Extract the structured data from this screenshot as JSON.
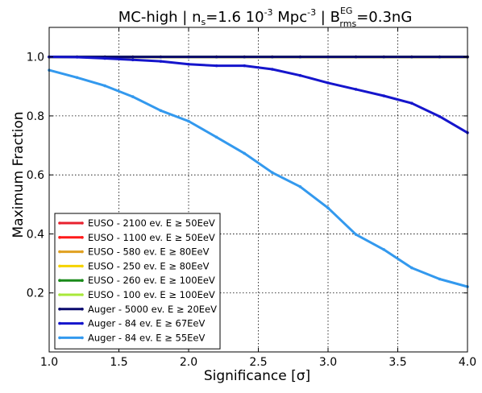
{
  "chart_data": {
    "type": "line",
    "title": {
      "prefix": "MC-high | n",
      "n_sub": "s",
      "mid": "=1.6 10",
      "exp": "-3",
      "unit": " Mpc",
      "unit_exp": "-3",
      "sep": "  | B",
      "b_sup": "EG",
      "b_sub": "rms",
      "suffix": "=0.3nG"
    },
    "xlabel": "Significance [σ]",
    "ylabel": "Maximum Fraction",
    "xlim": [
      1.0,
      4.0
    ],
    "ylim": [
      0.0,
      1.1
    ],
    "xticks": [
      "1.0",
      "1.5",
      "2.0",
      "2.5",
      "3.0",
      "3.5",
      "4.0"
    ],
    "yticks": [
      "0.2",
      "0.4",
      "0.6",
      "0.8",
      "1.0"
    ],
    "grid": true,
    "legend_position": "lower-left",
    "x": [
      1.0,
      1.2,
      1.4,
      1.6,
      1.8,
      2.0,
      2.2,
      2.4,
      2.6,
      2.8,
      3.0,
      3.2,
      3.4,
      3.6,
      3.8,
      4.0
    ],
    "series": [
      {
        "name": "EUSO - 2100 ev. E  ≥ 50EeV",
        "color": "#e8212e",
        "values": [
          1.0,
          1.0,
          1.0,
          1.0,
          1.0,
          1.0,
          1.0,
          1.0,
          1.0,
          1.0,
          1.0,
          1.0,
          1.0,
          1.0,
          1.0,
          1.0
        ]
      },
      {
        "name": "EUSO - 1100 ev. E  ≥ 50EeV",
        "color": "#ff1a1a",
        "values": [
          1.0,
          1.0,
          1.0,
          1.0,
          1.0,
          1.0,
          1.0,
          1.0,
          1.0,
          1.0,
          1.0,
          1.0,
          1.0,
          1.0,
          1.0,
          1.0
        ]
      },
      {
        "name": "EUSO - 580 ev. E  ≥ 80EeV",
        "color": "#e0a020",
        "values": [
          1.0,
          1.0,
          1.0,
          1.0,
          1.0,
          1.0,
          1.0,
          1.0,
          1.0,
          1.0,
          1.0,
          1.0,
          1.0,
          1.0,
          1.0,
          1.0
        ]
      },
      {
        "name": "EUSO - 250 ev. E  ≥ 80EeV",
        "color": "#f5d300",
        "values": [
          1.0,
          1.0,
          1.0,
          1.0,
          1.0,
          1.0,
          1.0,
          1.0,
          1.0,
          1.0,
          1.0,
          1.0,
          1.0,
          1.0,
          1.0,
          1.0
        ]
      },
      {
        "name": "EUSO - 260 ev. E  ≥ 100EeV",
        "color": "#1a8a1a",
        "values": [
          1.0,
          1.0,
          1.0,
          1.0,
          1.0,
          1.0,
          1.0,
          1.0,
          1.0,
          1.0,
          1.0,
          1.0,
          1.0,
          1.0,
          1.0,
          1.0
        ]
      },
      {
        "name": "EUSO - 100 ev. E  ≥ 100EeV",
        "color": "#a8e83a",
        "values": [
          1.0,
          1.0,
          1.0,
          1.0,
          1.0,
          1.0,
          1.0,
          1.0,
          1.0,
          1.0,
          1.0,
          1.0,
          1.0,
          1.0,
          1.0,
          1.0
        ]
      },
      {
        "name": "Auger - 5000 ev. E  ≥ 20EeV",
        "color": "#0a0a6e",
        "values": [
          1.0,
          1.0,
          1.0,
          1.0,
          1.0,
          1.0,
          1.0,
          1.0,
          1.0,
          1.0,
          1.0,
          1.0,
          1.0,
          1.0,
          1.0,
          1.0
        ]
      },
      {
        "name": "Auger - 84 ev. E  ≥ 67EeV",
        "color": "#1515cc",
        "values": [
          1.0,
          0.999,
          0.995,
          0.99,
          0.985,
          0.975,
          0.97,
          0.97,
          0.958,
          0.937,
          0.912,
          0.89,
          0.868,
          0.843,
          0.798,
          0.743
        ]
      },
      {
        "name": "Auger - 84 ev. E  ≥ 55EeV",
        "color": "#3399ee",
        "values": [
          0.955,
          0.93,
          0.902,
          0.865,
          0.818,
          0.782,
          0.728,
          0.673,
          0.608,
          0.56,
          0.488,
          0.398,
          0.347,
          0.285,
          0.247,
          0.221
        ]
      }
    ]
  }
}
